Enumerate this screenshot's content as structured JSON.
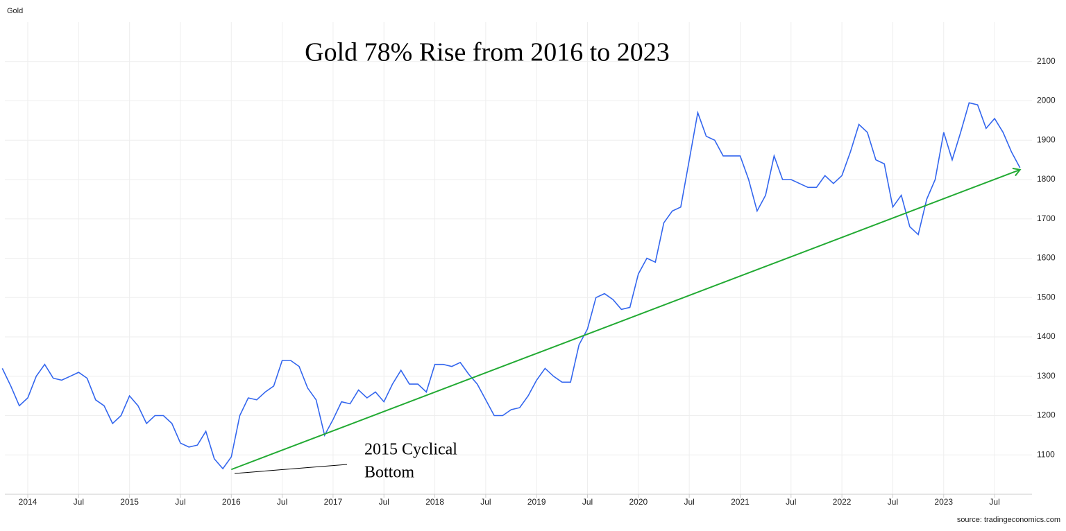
{
  "chart_data": {
    "type": "line",
    "corner_label": "Gold",
    "title": "Gold 78% Rise from 2016 to 2023",
    "annotation": [
      "2015 Cyclical",
      "Bottom"
    ],
    "source": "source: tradingeconomics.com",
    "x": [
      "2013-10",
      "2013-11",
      "2013-12",
      "2014-01",
      "2014-02",
      "2014-03",
      "2014-04",
      "2014-05",
      "2014-06",
      "2014-07",
      "2014-08",
      "2014-09",
      "2014-10",
      "2014-11",
      "2014-12",
      "2015-01",
      "2015-02",
      "2015-03",
      "2015-04",
      "2015-05",
      "2015-06",
      "2015-07",
      "2015-08",
      "2015-09",
      "2015-10",
      "2015-11",
      "2015-12",
      "2016-01",
      "2016-02",
      "2016-03",
      "2016-04",
      "2016-05",
      "2016-06",
      "2016-07",
      "2016-08",
      "2016-09",
      "2016-10",
      "2016-11",
      "2016-12",
      "2017-01",
      "2017-02",
      "2017-03",
      "2017-04",
      "2017-05",
      "2017-06",
      "2017-07",
      "2017-08",
      "2017-09",
      "2017-10",
      "2017-11",
      "2017-12",
      "2018-01",
      "2018-02",
      "2018-03",
      "2018-04",
      "2018-05",
      "2018-06",
      "2018-07",
      "2018-08",
      "2018-09",
      "2018-10",
      "2018-11",
      "2018-12",
      "2019-01",
      "2019-02",
      "2019-03",
      "2019-04",
      "2019-05",
      "2019-06",
      "2019-07",
      "2019-08",
      "2019-09",
      "2019-10",
      "2019-11",
      "2019-12",
      "2020-01",
      "2020-02",
      "2020-03",
      "2020-04",
      "2020-05",
      "2020-06",
      "2020-07",
      "2020-08",
      "2020-09",
      "2020-10",
      "2020-11",
      "2020-12",
      "2021-01",
      "2021-02",
      "2021-03",
      "2021-04",
      "2021-05",
      "2021-06",
      "2021-07",
      "2021-08",
      "2021-09",
      "2021-10",
      "2021-11",
      "2021-12",
      "2022-01",
      "2022-02",
      "2022-03",
      "2022-04",
      "2022-05",
      "2022-06",
      "2022-07",
      "2022-08",
      "2022-09",
      "2022-10",
      "2022-11",
      "2022-12",
      "2023-01",
      "2023-02",
      "2023-03",
      "2023-04",
      "2023-05",
      "2023-06",
      "2023-07",
      "2023-08",
      "2023-09",
      "2023-10"
    ],
    "series": [
      {
        "name": "Gold",
        "color": "#3366ee",
        "values": [
          1320,
          1275,
          1225,
          1245,
          1300,
          1330,
          1295,
          1290,
          1300,
          1310,
          1295,
          1240,
          1225,
          1180,
          1200,
          1250,
          1225,
          1180,
          1200,
          1200,
          1180,
          1130,
          1120,
          1125,
          1160,
          1090,
          1065,
          1095,
          1200,
          1245,
          1240,
          1260,
          1275,
          1340,
          1340,
          1325,
          1270,
          1240,
          1150,
          1190,
          1235,
          1230,
          1265,
          1245,
          1260,
          1235,
          1280,
          1315,
          1280,
          1280,
          1260,
          1330,
          1330,
          1325,
          1335,
          1305,
          1280,
          1240,
          1200,
          1200,
          1215,
          1220,
          1250,
          1290,
          1320,
          1300,
          1285,
          1285,
          1380,
          1420,
          1500,
          1510,
          1495,
          1470,
          1475,
          1560,
          1600,
          1590,
          1690,
          1720,
          1730,
          1850,
          1970,
          1910,
          1900,
          1860,
          1860,
          1860,
          1800,
          1720,
          1760,
          1860,
          1800,
          1800,
          1790,
          1780,
          1780,
          1810,
          1790,
          1810,
          1870,
          1940,
          1920,
          1850,
          1840,
          1730,
          1760,
          1680,
          1660,
          1750,
          1800,
          1920,
          1850,
          1920,
          1995,
          1990,
          1930,
          1955,
          1920,
          1870,
          1830
        ]
      }
    ],
    "trend_line": {
      "color": "#22aa33",
      "x": [
        "2016-01",
        "2023-10"
      ],
      "values": [
        1063,
        1825
      ]
    },
    "xticks": [
      {
        "value": "2014-01",
        "label": "2014"
      },
      {
        "value": "2014-07",
        "label": "Jul"
      },
      {
        "value": "2015-01",
        "label": "2015"
      },
      {
        "value": "2015-07",
        "label": "Jul"
      },
      {
        "value": "2016-01",
        "label": "2016"
      },
      {
        "value": "2016-07",
        "label": "Jul"
      },
      {
        "value": "2017-01",
        "label": "2017"
      },
      {
        "value": "2017-07",
        "label": "Jul"
      },
      {
        "value": "2018-01",
        "label": "2018"
      },
      {
        "value": "2018-07",
        "label": "Jul"
      },
      {
        "value": "2019-01",
        "label": "2019"
      },
      {
        "value": "2019-07",
        "label": "Jul"
      },
      {
        "value": "2020-01",
        "label": "2020"
      },
      {
        "value": "2020-07",
        "label": "Jul"
      },
      {
        "value": "2021-01",
        "label": "2021"
      },
      {
        "value": "2021-07",
        "label": "Jul"
      },
      {
        "value": "2022-01",
        "label": "2022"
      },
      {
        "value": "2022-07",
        "label": "Jul"
      },
      {
        "value": "2023-01",
        "label": "2023"
      },
      {
        "value": "2023-07",
        "label": "Jul"
      }
    ],
    "ylim": [
      1000,
      2200
    ],
    "yticks": [
      1100,
      1200,
      1300,
      1400,
      1500,
      1600,
      1700,
      1800,
      1900,
      2000,
      2100
    ],
    "grid": true
  }
}
